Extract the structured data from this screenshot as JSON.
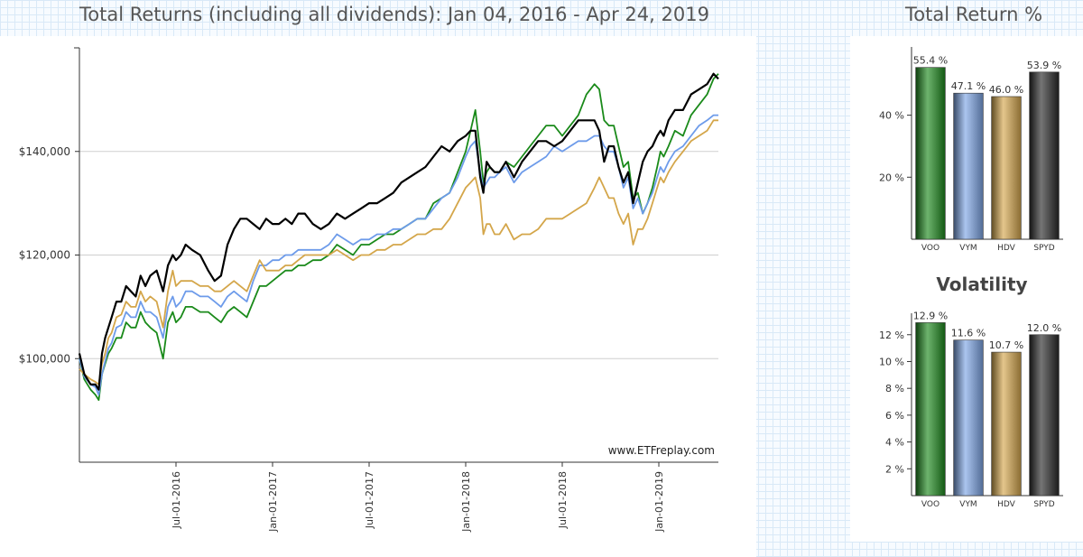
{
  "header": {
    "main_title": "Total Returns (including all dividends): Jan 04, 2016 - Apr 24, 2019",
    "side_title": "Total Return %"
  },
  "chart_data": [
    {
      "type": "line",
      "title": "Total Returns (including all dividends): Jan 04, 2016 - Apr 24, 2019",
      "watermark": "www.ETFreplay.com",
      "ylim": [
        80000,
        160000
      ],
      "yticks": [
        100000,
        120000,
        140000
      ],
      "ytick_labels": [
        "$100,000",
        "$120,000",
        "$140,000"
      ],
      "xlim": [
        0,
        39.7
      ],
      "xticks": [
        6,
        12,
        18,
        24,
        30,
        36
      ],
      "xtick_labels": [
        "Jul-01-2016",
        "Jan-01-2017",
        "Jul-01-2017",
        "Jan-01-2018",
        "Jul-01-2018",
        "Jan-01-2019"
      ],
      "series": [
        {
          "name": "VOO",
          "color": "#1a8a1a",
          "x": [
            0,
            0.3,
            0.7,
            1.0,
            1.2,
            1.4,
            1.6,
            1.8,
            2.0,
            2.3,
            2.6,
            2.9,
            3.2,
            3.5,
            3.8,
            4.1,
            4.4,
            4.8,
            5.2,
            5.5,
            5.8,
            6.0,
            6.3,
            6.6,
            7.0,
            7.5,
            8.0,
            8.4,
            8.8,
            9.2,
            9.6,
            10.0,
            10.4,
            10.8,
            11.2,
            11.6,
            12.0,
            12.4,
            12.8,
            13.2,
            13.6,
            14.0,
            14.5,
            15.0,
            15.5,
            16.0,
            16.5,
            17.0,
            17.5,
            18.0,
            18.5,
            19.0,
            19.5,
            20.0,
            20.5,
            21.0,
            21.5,
            22.0,
            22.5,
            23.0,
            23.5,
            24.0,
            24.3,
            24.6,
            24.9,
            25.1,
            25.3,
            25.5,
            25.8,
            26.1,
            26.5,
            27.0,
            27.5,
            28.0,
            28.5,
            29.0,
            29.5,
            30.0,
            30.5,
            31.0,
            31.5,
            32.0,
            32.3,
            32.6,
            32.9,
            33.2,
            33.5,
            33.8,
            34.1,
            34.4,
            34.7,
            35.0,
            35.3,
            35.6,
            35.9,
            36.1,
            36.3,
            36.6,
            37.0,
            37.5,
            38.0,
            38.5,
            39.0,
            39.4,
            39.7
          ],
          "y": [
            100000,
            96000,
            94000,
            93000,
            92000,
            97000,
            99000,
            101000,
            102000,
            104000,
            104000,
            107000,
            106000,
            106000,
            109000,
            107000,
            106000,
            105000,
            100000,
            107000,
            109000,
            107000,
            108000,
            110000,
            110000,
            109000,
            109000,
            108000,
            107000,
            109000,
            110000,
            109000,
            108000,
            111000,
            114000,
            114000,
            115000,
            116000,
            117000,
            117000,
            118000,
            118000,
            119000,
            119000,
            120000,
            122000,
            121000,
            120000,
            122000,
            122000,
            123000,
            124000,
            124000,
            125000,
            126000,
            127000,
            127000,
            130000,
            131000,
            132000,
            136000,
            140000,
            144000,
            148000,
            140000,
            134000,
            136000,
            137000,
            136000,
            136000,
            138000,
            137000,
            139000,
            141000,
            143000,
            145000,
            145000,
            143000,
            145000,
            147000,
            151000,
            153000,
            152000,
            146000,
            145000,
            145000,
            141000,
            137000,
            138000,
            131000,
            132000,
            128000,
            130000,
            133000,
            137000,
            140000,
            139000,
            141000,
            144000,
            143000,
            147000,
            149000,
            151000,
            154000,
            155000
          ]
        },
        {
          "name": "VYM",
          "color": "#6d9bea",
          "x": [
            0,
            0.3,
            0.7,
            1.0,
            1.2,
            1.4,
            1.6,
            1.8,
            2.0,
            2.3,
            2.6,
            2.9,
            3.2,
            3.5,
            3.8,
            4.1,
            4.4,
            4.8,
            5.2,
            5.5,
            5.8,
            6.0,
            6.3,
            6.6,
            7.0,
            7.5,
            8.0,
            8.4,
            8.8,
            9.2,
            9.6,
            10.0,
            10.4,
            10.8,
            11.2,
            11.6,
            12.0,
            12.4,
            12.8,
            13.2,
            13.6,
            14.0,
            14.5,
            15.0,
            15.5,
            16.0,
            16.5,
            17.0,
            17.5,
            18.0,
            18.5,
            19.0,
            19.5,
            20.0,
            20.5,
            21.0,
            21.5,
            22.0,
            22.5,
            23.0,
            23.5,
            24.0,
            24.3,
            24.6,
            24.9,
            25.1,
            25.3,
            25.5,
            25.8,
            26.1,
            26.5,
            27.0,
            27.5,
            28.0,
            28.5,
            29.0,
            29.5,
            30.0,
            30.5,
            31.0,
            31.5,
            32.0,
            32.3,
            32.6,
            32.9,
            33.2,
            33.5,
            33.8,
            34.1,
            34.4,
            34.7,
            35.0,
            35.3,
            35.6,
            35.9,
            36.1,
            36.3,
            36.6,
            37.0,
            37.5,
            38.0,
            38.5,
            39.0,
            39.4,
            39.7
          ],
          "y": [
            100000,
            96500,
            95000,
            94500,
            93000,
            97000,
            99500,
            102000,
            103000,
            106000,
            106500,
            109000,
            108000,
            108000,
            111000,
            109000,
            109000,
            108000,
            104000,
            110000,
            112000,
            110000,
            111000,
            113000,
            113000,
            112000,
            112000,
            111000,
            110000,
            112000,
            113000,
            112000,
            111000,
            115000,
            118000,
            118000,
            119000,
            119000,
            120000,
            120000,
            121000,
            121000,
            121000,
            121000,
            122000,
            124000,
            123000,
            122000,
            123000,
            123000,
            124000,
            124000,
            125000,
            125000,
            126000,
            127000,
            127000,
            129000,
            131000,
            132000,
            135000,
            139000,
            141000,
            142000,
            136000,
            133000,
            134000,
            135000,
            135000,
            136000,
            137000,
            134000,
            136000,
            137000,
            138000,
            139000,
            141000,
            140000,
            141000,
            142000,
            142000,
            143000,
            143000,
            141000,
            140000,
            140000,
            137000,
            133000,
            135000,
            129000,
            131000,
            128000,
            130000,
            132000,
            135000,
            137000,
            136000,
            138000,
            140000,
            141000,
            143000,
            145000,
            146000,
            147000,
            147000
          ]
        },
        {
          "name": "HDV",
          "color": "#d4a64a",
          "x": [
            0,
            0.3,
            0.7,
            1.0,
            1.2,
            1.4,
            1.6,
            1.8,
            2.0,
            2.3,
            2.6,
            2.9,
            3.2,
            3.5,
            3.8,
            4.1,
            4.4,
            4.8,
            5.2,
            5.5,
            5.8,
            6.0,
            6.3,
            6.6,
            7.0,
            7.5,
            8.0,
            8.4,
            8.8,
            9.2,
            9.6,
            10.0,
            10.4,
            10.8,
            11.2,
            11.6,
            12.0,
            12.4,
            12.8,
            13.2,
            13.6,
            14.0,
            14.5,
            15.0,
            15.5,
            16.0,
            16.5,
            17.0,
            17.5,
            18.0,
            18.5,
            19.0,
            19.5,
            20.0,
            20.5,
            21.0,
            21.5,
            22.0,
            22.5,
            23.0,
            23.5,
            24.0,
            24.3,
            24.6,
            24.9,
            25.1,
            25.3,
            25.5,
            25.8,
            26.1,
            26.5,
            27.0,
            27.5,
            28.0,
            28.5,
            29.0,
            29.5,
            30.0,
            30.5,
            31.0,
            31.5,
            32.0,
            32.3,
            32.6,
            32.9,
            33.2,
            33.5,
            33.8,
            34.1,
            34.4,
            34.7,
            35.0,
            35.3,
            35.6,
            35.9,
            36.1,
            36.3,
            36.6,
            37.0,
            37.5,
            38.0,
            38.5,
            39.0,
            39.4,
            39.7
          ],
          "y": [
            98000,
            97000,
            96000,
            95500,
            95000,
            99000,
            101000,
            104000,
            105000,
            108000,
            108500,
            111000,
            110000,
            110000,
            113000,
            111000,
            112000,
            111000,
            106000,
            113000,
            117000,
            114000,
            115000,
            115000,
            115000,
            114000,
            114000,
            113000,
            113000,
            114000,
            115000,
            114000,
            113000,
            116000,
            119000,
            117000,
            117000,
            117000,
            118000,
            118000,
            119000,
            120000,
            120000,
            120000,
            120000,
            121000,
            120000,
            119000,
            120000,
            120000,
            121000,
            121000,
            122000,
            122000,
            123000,
            124000,
            124000,
            125000,
            125000,
            127000,
            130000,
            133000,
            134000,
            135000,
            131000,
            124000,
            126000,
            126000,
            124000,
            124000,
            126000,
            123000,
            124000,
            124000,
            125000,
            127000,
            127000,
            127000,
            128000,
            129000,
            130000,
            133000,
            135000,
            133000,
            131000,
            131000,
            128000,
            126000,
            128000,
            122000,
            125000,
            125000,
            127000,
            130000,
            133000,
            135000,
            134000,
            136000,
            138000,
            140000,
            142000,
            143000,
            144000,
            146000,
            146000
          ]
        },
        {
          "name": "SPYD",
          "color": "#000000",
          "x": [
            0,
            0.3,
            0.7,
            1.0,
            1.2,
            1.4,
            1.6,
            1.8,
            2.0,
            2.3,
            2.6,
            2.9,
            3.2,
            3.5,
            3.8,
            4.1,
            4.4,
            4.8,
            5.2,
            5.5,
            5.8,
            6.0,
            6.3,
            6.6,
            7.0,
            7.5,
            8.0,
            8.4,
            8.8,
            9.2,
            9.6,
            10.0,
            10.4,
            10.8,
            11.2,
            11.6,
            12.0,
            12.4,
            12.8,
            13.2,
            13.6,
            14.0,
            14.5,
            15.0,
            15.5,
            16.0,
            16.5,
            17.0,
            17.5,
            18.0,
            18.5,
            19.0,
            19.5,
            20.0,
            20.5,
            21.0,
            21.5,
            22.0,
            22.5,
            23.0,
            23.5,
            24.0,
            24.3,
            24.6,
            24.9,
            25.1,
            25.3,
            25.5,
            25.8,
            26.1,
            26.5,
            27.0,
            27.5,
            28.0,
            28.5,
            29.0,
            29.5,
            30.0,
            30.5,
            31.0,
            31.5,
            32.0,
            32.3,
            32.6,
            32.9,
            33.2,
            33.5,
            33.8,
            34.1,
            34.4,
            34.7,
            35.0,
            35.3,
            35.6,
            35.9,
            36.1,
            36.3,
            36.6,
            37.0,
            37.5,
            38.0,
            38.5,
            39.0,
            39.4,
            39.7
          ],
          "y": [
            101000,
            97000,
            95000,
            95000,
            94000,
            101000,
            104000,
            106000,
            108000,
            111000,
            111000,
            114000,
            113000,
            112000,
            116000,
            114000,
            116000,
            117000,
            113000,
            118000,
            120000,
            119000,
            120000,
            122000,
            121000,
            120000,
            117000,
            115000,
            116000,
            122000,
            125000,
            127000,
            127000,
            126000,
            125000,
            127000,
            126000,
            126000,
            127000,
            126000,
            128000,
            128000,
            126000,
            125000,
            126000,
            128000,
            127000,
            128000,
            129000,
            130000,
            130000,
            131000,
            132000,
            134000,
            135000,
            136000,
            137000,
            139000,
            141000,
            140000,
            142000,
            143000,
            144000,
            144000,
            135000,
            132000,
            138000,
            137000,
            136000,
            136000,
            138000,
            135000,
            138000,
            140000,
            142000,
            142000,
            141000,
            142000,
            144000,
            146000,
            146000,
            146000,
            144000,
            138000,
            141000,
            141000,
            137000,
            134000,
            136000,
            130000,
            134000,
            138000,
            140000,
            141000,
            143000,
            144000,
            143000,
            146000,
            148000,
            148000,
            151000,
            152000,
            153000,
            155000,
            154000
          ]
        }
      ]
    },
    {
      "type": "bar",
      "title": "Total Return %",
      "categories": [
        "VOO",
        "VYM",
        "HDV",
        "SPYD"
      ],
      "values": [
        55.4,
        47.1,
        46.0,
        53.9
      ],
      "value_labels": [
        "55.4 %",
        "47.1 %",
        "46.0 %",
        "53.9 %"
      ],
      "colors": [
        "#1f8a1f",
        "#7ea6e6",
        "#d6a84e",
        "#2a2a2a"
      ],
      "ylim": [
        0,
        62
      ],
      "yticks": [
        20,
        40
      ],
      "ytick_labels": [
        "20 %",
        "40 %"
      ]
    },
    {
      "type": "bar",
      "title": "Volatility",
      "categories": [
        "VOO",
        "VYM",
        "HDV",
        "SPYD"
      ],
      "values": [
        12.9,
        11.6,
        10.7,
        12.0
      ],
      "value_labels": [
        "12.9 %",
        "11.6 %",
        "10.7 %",
        "12.0 %"
      ],
      "colors": [
        "#1f8a1f",
        "#7ea6e6",
        "#d6a84e",
        "#2a2a2a"
      ],
      "ylim": [
        0,
        13.6
      ],
      "yticks": [
        2,
        4,
        6,
        8,
        10,
        12
      ],
      "ytick_labels": [
        "2 %",
        "4 %",
        "6 %",
        "8 %",
        "10 %",
        "12 %"
      ]
    }
  ]
}
